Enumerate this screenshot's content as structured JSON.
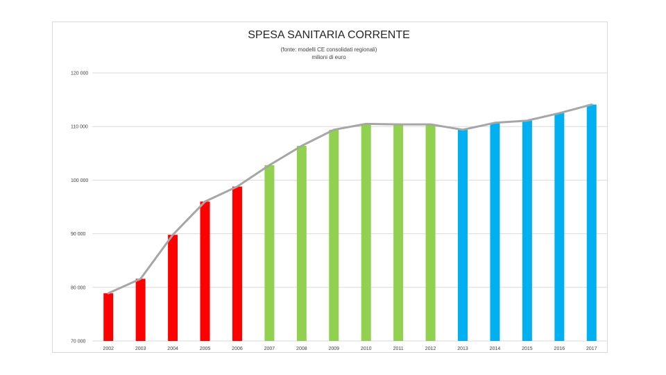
{
  "chart_data": {
    "type": "bar",
    "title": "SPESA SANITARIA CORRENTE",
    "subtitle": "(fonte: modelli CE consolidati regionali)",
    "unit_label": "milioni di euro",
    "categories": [
      "2002",
      "2003",
      "2004",
      "2005",
      "2006",
      "2007",
      "2008",
      "2009",
      "2010",
      "2011",
      "2012",
      "2013",
      "2014",
      "2015",
      "2016",
      "2017"
    ],
    "values": [
      78900,
      81600,
      89800,
      96000,
      98800,
      102800,
      106400,
      109400,
      110500,
      110400,
      110400,
      109400,
      110700,
      111100,
      112500,
      114100
    ],
    "bar_colors": [
      "#ff0000",
      "#ff0000",
      "#ff0000",
      "#ff0000",
      "#ff0000",
      "#92d050",
      "#92d050",
      "#92d050",
      "#92d050",
      "#92d050",
      "#92d050",
      "#00b0f0",
      "#00b0f0",
      "#00b0f0",
      "#00b0f0",
      "#00b0f0"
    ],
    "line_series": {
      "name": "trend",
      "color": "#a6a6a6",
      "values": [
        78900,
        81600,
        89800,
        96000,
        98800,
        102800,
        106400,
        109400,
        110500,
        110400,
        110400,
        109400,
        110700,
        111100,
        112500,
        114100
      ]
    },
    "ylim": [
      70000,
      120000
    ],
    "yticks": [
      70000,
      80000,
      90000,
      100000,
      110000,
      120000
    ],
    "ytick_labels": [
      "70 000",
      "80 000",
      "90 000",
      "100 000",
      "110 000",
      "120 000"
    ],
    "grid": true,
    "legend": "none"
  }
}
